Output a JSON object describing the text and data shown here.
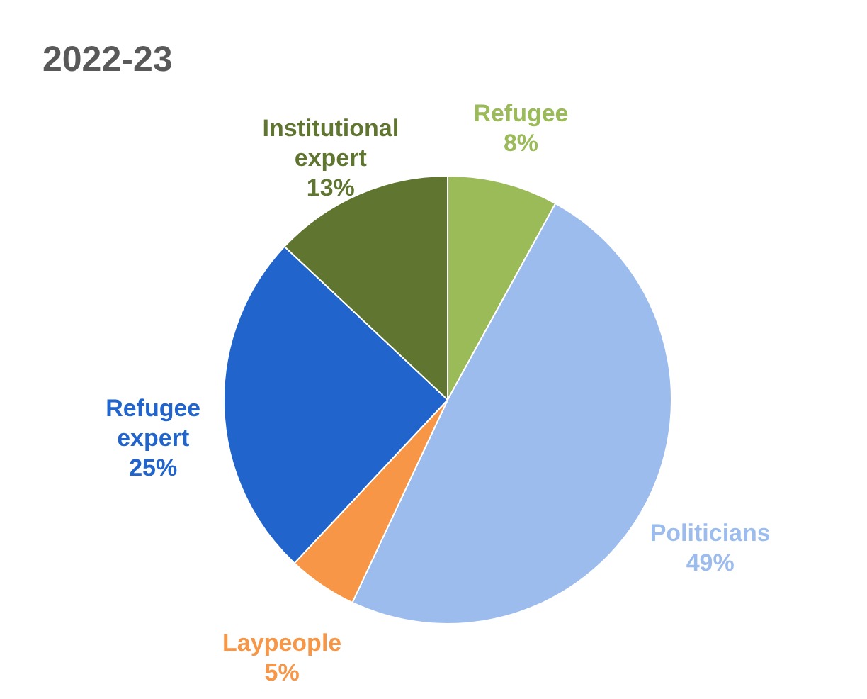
{
  "chart_data": {
    "type": "pie",
    "title": "2022-23",
    "categories": [
      "Refugee",
      "Politicians",
      "Laypeople",
      "Refugee expert",
      "Institutional expert"
    ],
    "values": [
      8,
      49,
      5,
      25,
      13
    ],
    "value_labels": [
      "8%",
      "49%",
      "5%",
      "25%",
      "13%"
    ],
    "colors": [
      "#9bbb59",
      "#9dbcee",
      "#f79646",
      "#2165cc",
      "#5f7530"
    ]
  }
}
